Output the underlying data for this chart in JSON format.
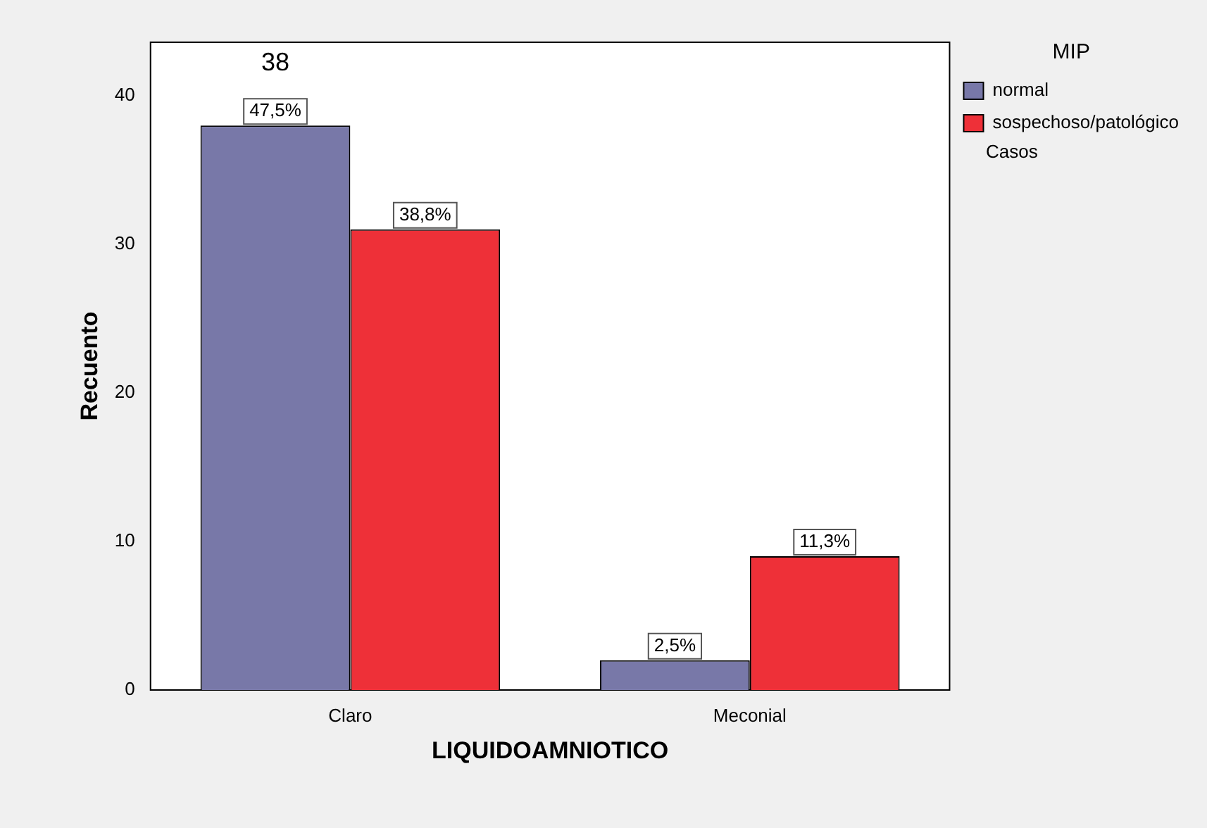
{
  "chart_data": {
    "type": "bar",
    "xlabel": "LIQUIDOAMNIOTICO",
    "ylabel": "Recuento",
    "legend_title": "MIP",
    "categories": [
      "Claro",
      "Meconial"
    ],
    "series": [
      {
        "name": "normal",
        "color": "#7878a8",
        "values": [
          38,
          2
        ]
      },
      {
        "name": "sospechoso/patológico",
        "color": "#ee3038",
        "values": [
          31,
          9
        ]
      }
    ],
    "ylim": [
      0,
      43.6
    ],
    "yticks": [
      0,
      10,
      20,
      30,
      40
    ],
    "grid": false,
    "legend": "top right",
    "annotations": [
      {
        "text": "47,5%",
        "x": "Claro",
        "y": 38
      },
      {
        "text": "38,8%",
        "x": "Claro",
        "y": 31
      },
      {
        "text": "2,5%",
        "x": "Meconial",
        "y": 2
      },
      {
        "text": "11,3%",
        "x": "Meconial",
        "y": 9
      },
      "38",
      "Casos"
    ]
  }
}
